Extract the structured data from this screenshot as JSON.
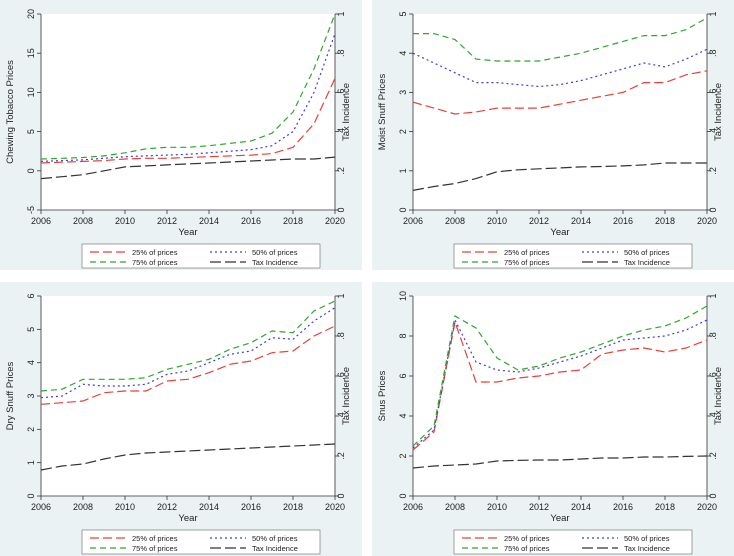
{
  "colors": {
    "panel_bg": "#eaf2f3",
    "plot_bg": "#ffffff",
    "axis": "#333333",
    "series": [
      "#e8413a",
      "#3d3dd8",
      "#2ca82c",
      "#333333"
    ]
  },
  "chart_data": [
    {
      "type": "line",
      "xlabel": "Year",
      "ylabel": "Chewing Tobacco Prices",
      "y2label": "Tax Incidence",
      "x": [
        2006,
        2007,
        2008,
        2009,
        2010,
        2011,
        2012,
        2013,
        2014,
        2015,
        2016,
        2017,
        2018,
        2019,
        2020
      ],
      "xlim": [
        2006,
        2020
      ],
      "ylim": [
        -5,
        20
      ],
      "y2lim": [
        0,
        1
      ],
      "xticks": [
        "2006",
        "2008",
        "2010",
        "2012",
        "2014",
        "2016",
        "2018",
        "2020"
      ],
      "yticks": [
        "-5",
        "0",
        "5",
        "10",
        "15",
        "20"
      ],
      "y2ticks": [
        "0",
        ".2",
        ".4",
        ".6",
        ".8",
        "1"
      ],
      "legend": "bottom",
      "series": [
        {
          "name": "25% of prices",
          "axis": "left",
          "values": [
            1.0,
            1.1,
            1.2,
            1.3,
            1.5,
            1.6,
            1.6,
            1.7,
            1.8,
            1.9,
            2.0,
            2.2,
            3.0,
            6.0,
            11.8
          ]
        },
        {
          "name": "50% of prices",
          "axis": "left",
          "values": [
            1.2,
            1.3,
            1.4,
            1.6,
            1.8,
            1.9,
            2.0,
            2.1,
            2.3,
            2.5,
            2.7,
            3.2,
            5.0,
            10.0,
            17.5
          ]
        },
        {
          "name": "75% of prices",
          "axis": "left",
          "values": [
            1.5,
            1.6,
            1.7,
            1.9,
            2.3,
            2.8,
            3.0,
            3.0,
            3.2,
            3.5,
            3.8,
            4.8,
            7.5,
            13.0,
            20.0
          ]
        },
        {
          "name": "Tax Incidence",
          "axis": "right",
          "values": [
            0.16,
            0.17,
            0.18,
            0.2,
            0.22,
            0.225,
            0.23,
            0.235,
            0.24,
            0.245,
            0.25,
            0.255,
            0.26,
            0.26,
            0.27
          ]
        }
      ]
    },
    {
      "type": "line",
      "xlabel": "Year",
      "ylabel": "Moist Snuff Prices",
      "y2label": "Tax Incidence",
      "x": [
        2006,
        2007,
        2008,
        2009,
        2010,
        2011,
        2012,
        2013,
        2014,
        2015,
        2016,
        2017,
        2018,
        2019,
        2020
      ],
      "xlim": [
        2006,
        2020
      ],
      "ylim": [
        0,
        5
      ],
      "y2lim": [
        0,
        1
      ],
      "xticks": [
        "2006",
        "2008",
        "2010",
        "2012",
        "2014",
        "2016",
        "2018",
        "2020"
      ],
      "yticks": [
        "0",
        "1",
        "2",
        "3",
        "4",
        "5"
      ],
      "y2ticks": [
        "0",
        ".2",
        ".4",
        ".6",
        ".8",
        "1"
      ],
      "legend": "bottom",
      "series": [
        {
          "name": "25% of prices",
          "axis": "left",
          "values": [
            2.75,
            2.6,
            2.45,
            2.5,
            2.6,
            2.6,
            2.6,
            2.7,
            2.8,
            2.9,
            3.0,
            3.25,
            3.25,
            3.45,
            3.55
          ]
        },
        {
          "name": "50% of prices",
          "axis": "left",
          "values": [
            4.0,
            3.75,
            3.5,
            3.25,
            3.25,
            3.2,
            3.15,
            3.2,
            3.3,
            3.45,
            3.6,
            3.75,
            3.65,
            3.85,
            4.1
          ]
        },
        {
          "name": "75% of prices",
          "axis": "left",
          "values": [
            4.5,
            4.5,
            4.35,
            3.85,
            3.8,
            3.8,
            3.8,
            3.9,
            4.0,
            4.15,
            4.3,
            4.45,
            4.45,
            4.6,
            4.9
          ]
        },
        {
          "name": "Tax Incidence",
          "axis": "right",
          "values": [
            0.1,
            0.12,
            0.135,
            0.16,
            0.195,
            0.205,
            0.21,
            0.215,
            0.22,
            0.222,
            0.225,
            0.23,
            0.24,
            0.24,
            0.24
          ]
        }
      ]
    },
    {
      "type": "line",
      "xlabel": "Year",
      "ylabel": "Dry Snuff Prices",
      "y2label": "Tax Incidence",
      "x": [
        2006,
        2007,
        2008,
        2009,
        2010,
        2011,
        2012,
        2013,
        2014,
        2015,
        2016,
        2017,
        2018,
        2019,
        2020
      ],
      "xlim": [
        2006,
        2020
      ],
      "ylim": [
        0,
        6
      ],
      "y2lim": [
        0,
        1
      ],
      "xticks": [
        "2006",
        "2008",
        "2010",
        "2012",
        "2014",
        "2016",
        "2018",
        "2020"
      ],
      "yticks": [
        "0",
        "1",
        "2",
        "3",
        "4",
        "5",
        "6"
      ],
      "y2ticks": [
        "0",
        ".2",
        ".4",
        ".6",
        ".8",
        "1"
      ],
      "legend": "bottom",
      "series": [
        {
          "name": "25% of prices",
          "axis": "left",
          "values": [
            2.75,
            2.8,
            2.85,
            3.1,
            3.15,
            3.15,
            3.45,
            3.5,
            3.7,
            3.95,
            4.05,
            4.3,
            4.35,
            4.8,
            5.1
          ]
        },
        {
          "name": "50% of prices",
          "axis": "left",
          "values": [
            2.95,
            3.0,
            3.35,
            3.3,
            3.3,
            3.35,
            3.65,
            3.75,
            4.0,
            4.25,
            4.35,
            4.75,
            4.7,
            5.25,
            5.65
          ]
        },
        {
          "name": "75% of prices",
          "axis": "left",
          "values": [
            3.15,
            3.2,
            3.5,
            3.5,
            3.5,
            3.55,
            3.8,
            3.95,
            4.1,
            4.4,
            4.6,
            4.95,
            4.9,
            5.55,
            5.85
          ]
        },
        {
          "name": "Tax Incidence",
          "axis": "right",
          "values": [
            0.13,
            0.15,
            0.16,
            0.185,
            0.205,
            0.215,
            0.22,
            0.225,
            0.23,
            0.235,
            0.24,
            0.245,
            0.25,
            0.255,
            0.26
          ]
        }
      ]
    },
    {
      "type": "line",
      "xlabel": "Year",
      "ylabel": "Snus Prices",
      "y2label": "Tax Incidence",
      "x": [
        2006,
        2007,
        2008,
        2009,
        2010,
        2011,
        2012,
        2013,
        2014,
        2015,
        2016,
        2017,
        2018,
        2019,
        2020
      ],
      "xlim": [
        2006,
        2020
      ],
      "ylim": [
        0,
        10
      ],
      "y2lim": [
        0,
        1
      ],
      "xticks": [
        "2006",
        "2008",
        "2010",
        "2012",
        "2014",
        "2016",
        "2018",
        "2020"
      ],
      "yticks": [
        "0",
        "2",
        "4",
        "6",
        "8",
        "10"
      ],
      "y2ticks": [
        "0",
        ".2",
        ".4",
        ".6",
        ".8",
        "1"
      ],
      "legend": "bottom",
      "series": [
        {
          "name": "25% of prices",
          "axis": "left",
          "values": [
            2.3,
            3.2,
            8.7,
            5.7,
            5.7,
            5.9,
            6.0,
            6.2,
            6.3,
            7.1,
            7.3,
            7.4,
            7.2,
            7.4,
            7.8
          ]
        },
        {
          "name": "50% of prices",
          "axis": "left",
          "values": [
            2.4,
            3.3,
            8.8,
            6.7,
            6.3,
            6.2,
            6.4,
            6.7,
            7.0,
            7.4,
            7.8,
            7.9,
            8.0,
            8.3,
            8.8
          ]
        },
        {
          "name": "75% of prices",
          "axis": "left",
          "values": [
            2.5,
            3.5,
            9.0,
            8.4,
            6.9,
            6.3,
            6.5,
            6.9,
            7.2,
            7.6,
            8.0,
            8.3,
            8.5,
            8.9,
            9.5
          ]
        },
        {
          "name": "Tax Incidence",
          "axis": "right",
          "values": [
            0.14,
            0.15,
            0.155,
            0.16,
            0.175,
            0.178,
            0.18,
            0.18,
            0.185,
            0.19,
            0.19,
            0.195,
            0.195,
            0.198,
            0.2
          ]
        }
      ]
    }
  ]
}
